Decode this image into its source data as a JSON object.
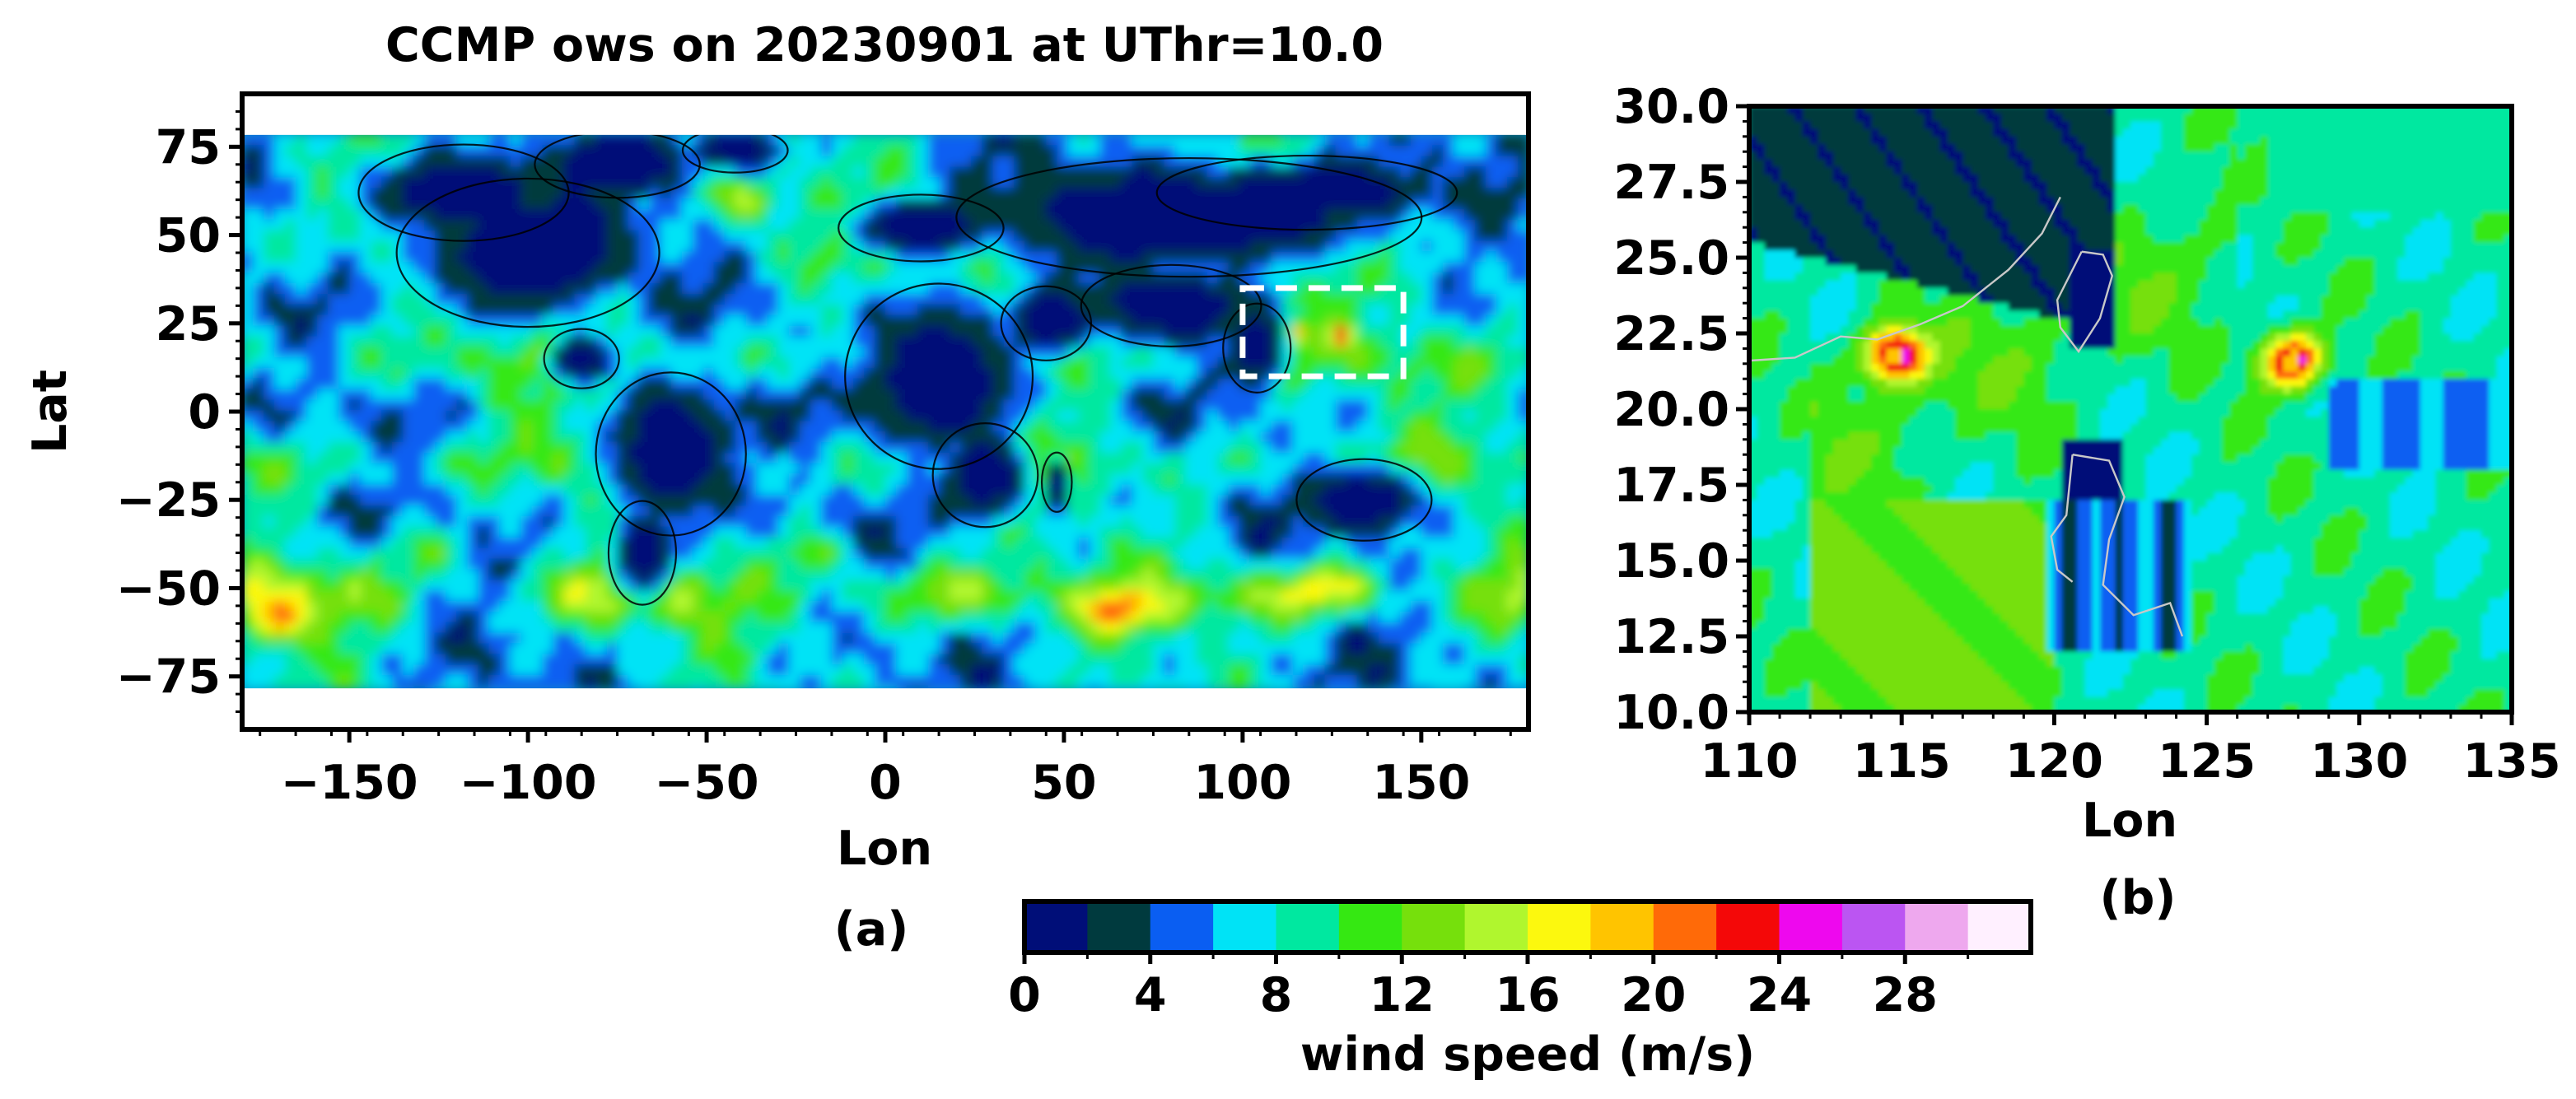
{
  "chart_data": [
    {
      "type": "heatmap",
      "title": "CCMP ows on 20230901 at UThr=10.0",
      "xlabel": "Lon",
      "ylabel": "Lat",
      "panel_label": "(a)",
      "xlim": [
        -180,
        180
      ],
      "ylim": [
        -90,
        90
      ],
      "xticks": [
        -150,
        -100,
        -50,
        0,
        50,
        100,
        150
      ],
      "xtick_labels": [
        "−150",
        "−100",
        "−50",
        "0",
        "50",
        "100",
        "150"
      ],
      "yticks": [
        75,
        50,
        25,
        0,
        -25,
        -50,
        -75
      ],
      "ytick_labels": [
        "75",
        "50",
        "25",
        "0",
        "−25",
        "−50",
        "−75"
      ],
      "data_extent_lat": [
        -78.375,
        78.375
      ],
      "highlight_box": {
        "lon": [
          100,
          145
        ],
        "lat": [
          10,
          35
        ],
        "style": "white-dashed"
      },
      "colorbar_ref": "wind speed (m/s)"
    },
    {
      "type": "heatmap",
      "title": "",
      "xlabel": "Lon",
      "ylabel": "",
      "panel_label": "(b)",
      "xlim": [
        110,
        135
      ],
      "ylim": [
        10,
        30
      ],
      "xticks": [
        110,
        115,
        120,
        125,
        130,
        135
      ],
      "xtick_labels": [
        "110",
        "115",
        "120",
        "125",
        "130",
        "135"
      ],
      "yticks": [
        30,
        27.5,
        25,
        22.5,
        20,
        17.5,
        15,
        12.5,
        10
      ],
      "ytick_labels": [
        "30.0",
        "27.5",
        "25.0",
        "22.5",
        "20.0",
        "17.5",
        "15.0",
        "12.5",
        "10.0"
      ],
      "wind_maxima": [
        {
          "lon": 114.8,
          "lat": 21.8,
          "max_speed_bin": "26-28"
        },
        {
          "lon": 127.8,
          "lat": 21.6,
          "max_speed_bin": "26-28"
        }
      ],
      "colorbar_ref": "wind speed (m/s)"
    }
  ],
  "colorbar": {
    "label": "wind speed (m/s)",
    "bin_width": 2,
    "range": [
      0,
      32
    ],
    "tick_values": [
      0,
      4,
      8,
      12,
      16,
      20,
      24,
      28
    ],
    "tick_labels": [
      "0",
      "4",
      "8",
      "12",
      "16",
      "20",
      "24",
      "28"
    ],
    "colors": [
      "#000e78",
      "#003a3e",
      "#0a5ef2",
      "#00e3f6",
      "#00e8a0",
      "#35e812",
      "#76e00c",
      "#b0f62e",
      "#fcf80e",
      "#ffc400",
      "#ff6a08",
      "#f40808",
      "#ee08ee",
      "#bb55f2",
      "#eea8ee",
      "#fff0ff"
    ]
  }
}
